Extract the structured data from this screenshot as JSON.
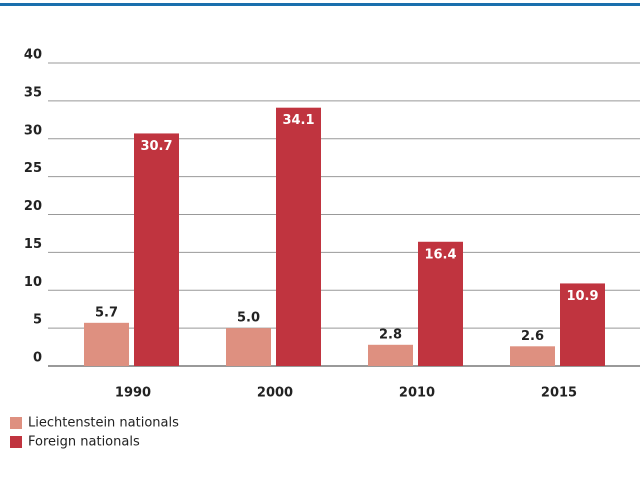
{
  "chart_data": {
    "type": "bar",
    "categories": [
      "1990",
      "2000",
      "2010",
      "2015"
    ],
    "series": [
      {
        "name": "Liechtenstein nationals",
        "color": "#de9080",
        "values": [
          5.7,
          5.0,
          2.8,
          2.6
        ],
        "value_labels": [
          "5.7",
          "5.0",
          "2.8",
          "2.6"
        ]
      },
      {
        "name": "Foreign nationals",
        "color": "#c0343f",
        "values": [
          30.7,
          34.1,
          16.4,
          10.9
        ],
        "value_labels": [
          "30.7",
          "34.1",
          "16.4",
          "10.9"
        ]
      }
    ],
    "ylim": [
      0,
      40
    ],
    "yticks": [
      0,
      5,
      10,
      15,
      20,
      25,
      30,
      35,
      40
    ],
    "grid": true
  }
}
